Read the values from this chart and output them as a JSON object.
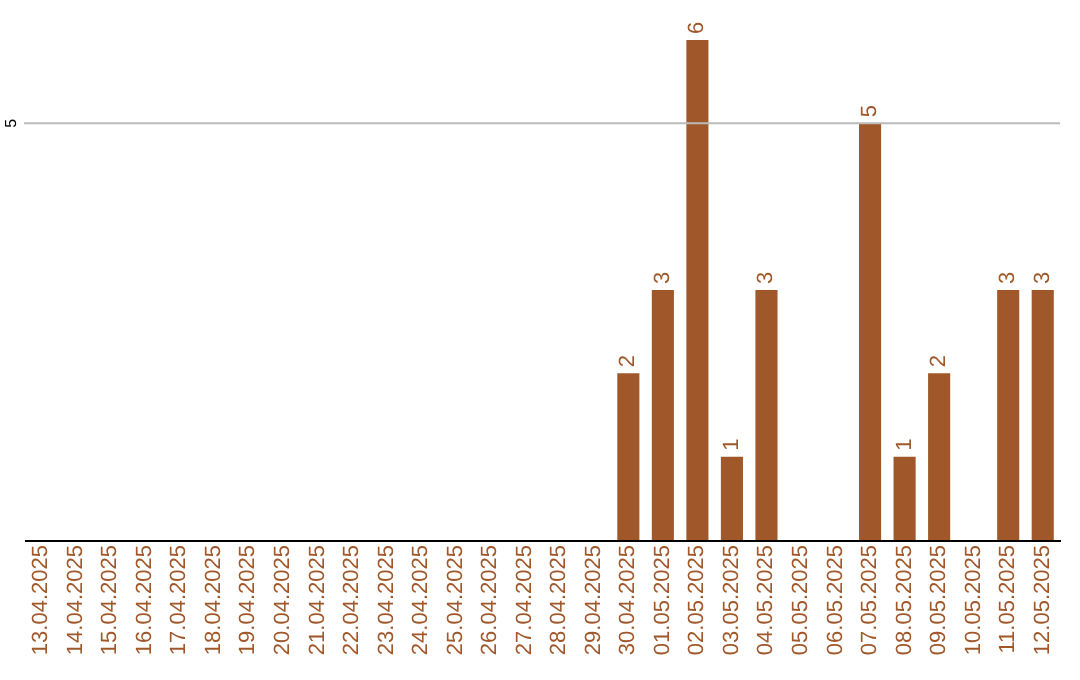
{
  "chart_data": {
    "type": "bar",
    "categories": [
      "13.04.2025",
      "14.04.2025",
      "15.04.2025",
      "16.04.2025",
      "17.04.2025",
      "18.04.2025",
      "19.04.2025",
      "20.04.2025",
      "21.04.2025",
      "22.04.2025",
      "23.04.2025",
      "24.04.2025",
      "25.04.2025",
      "26.04.2025",
      "27.04.2025",
      "28.04.2025",
      "29.04.2025",
      "30.04.2025",
      "01.05.2025",
      "02.05.2025",
      "03.05.2025",
      "04.05.2025",
      "05.05.2025",
      "06.05.2025",
      "07.05.2025",
      "08.05.2025",
      "09.05.2025",
      "10.05.2025",
      "11.05.2025",
      "12.05.2025"
    ],
    "values": [
      null,
      null,
      null,
      null,
      null,
      null,
      null,
      null,
      null,
      null,
      null,
      null,
      null,
      null,
      null,
      null,
      null,
      2,
      3,
      6,
      1,
      3,
      null,
      null,
      5,
      1,
      2,
      null,
      3,
      3
    ],
    "value_labels": [
      null,
      null,
      null,
      null,
      null,
      null,
      null,
      null,
      null,
      null,
      null,
      null,
      null,
      null,
      null,
      null,
      null,
      "2",
      "3",
      "6",
      "1",
      "3",
      null,
      null,
      "5",
      "1",
      "2",
      null,
      "3",
      "3"
    ],
    "color": "#a0582a",
    "ref_lines": [
      {
        "axis": "y",
        "value": 5,
        "label": "5",
        "color": "#bbbbbb"
      }
    ]
  }
}
